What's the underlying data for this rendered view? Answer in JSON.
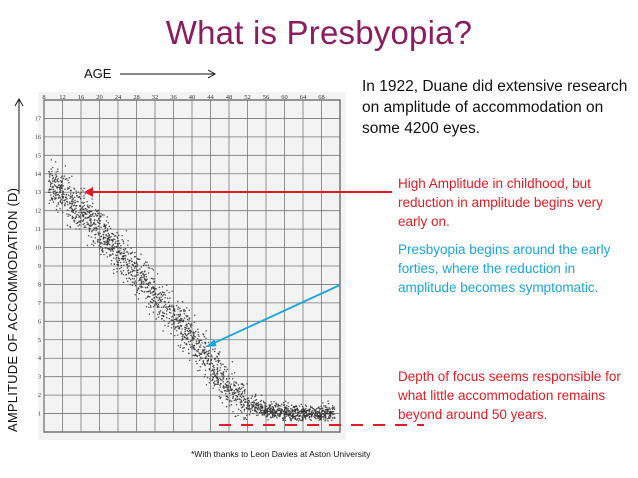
{
  "slide": {
    "title": "What is Presbyopia?",
    "x_axis_label": "AGE",
    "y_axis_label": "AMPLITUDE OF ACCOMMODATION (D)",
    "intro_text": "In 1922, Duane did extensive research on amplitude of accommodation on some 4200 eyes.",
    "annotations": [
      {
        "text": "High Amplitude in childhood, but reduction in amplitude begins very early on.",
        "color": "#e31b23"
      },
      {
        "text": "Presbyopia begins around the early forties, where the reduction in amplitude becomes symptomatic.",
        "color": "#1aa5dc"
      },
      {
        "text": "Depth of focus seems responsible for what little accommodation remains beyond around 50 years.",
        "color": "#e31b23"
      }
    ],
    "footnote": "*With thanks to Leon Davies at Aston University",
    "colors": {
      "title": "#8b1c62",
      "red": "#e31b23",
      "blue": "#1aa5dc",
      "dots": "#333333"
    }
  },
  "chart_data": {
    "type": "scatter",
    "x_ticks": [
      8,
      12,
      16,
      20,
      24,
      28,
      32,
      36,
      40,
      44,
      48,
      52,
      56,
      60,
      64,
      68
    ],
    "y_ticks": [
      1,
      2,
      3,
      4,
      5,
      6,
      7,
      8,
      9,
      10,
      11,
      12,
      13,
      14,
      15,
      16,
      17
    ],
    "xlim": [
      8,
      72
    ],
    "ylim": [
      0,
      18
    ],
    "grid": true,
    "trend": {
      "age": [
        8,
        12,
        16,
        20,
        24,
        28,
        32,
        36,
        40,
        44,
        48,
        52,
        56,
        60,
        64,
        68,
        72
      ],
      "amplitude": [
        13.8,
        12.9,
        11.9,
        10.9,
        9.8,
        8.6,
        7.5,
        6.3,
        5.1,
        3.7,
        2.4,
        1.5,
        1.2,
        1.1,
        1.0,
        1.0,
        1.0
      ]
    },
    "point_count": 2200,
    "annotation_targets": [
      {
        "age": 8,
        "amplitude": 13.2
      },
      {
        "age": 44,
        "amplitude": 4.6
      },
      {
        "age": 48,
        "amplitude": 1.2
      }
    ]
  }
}
